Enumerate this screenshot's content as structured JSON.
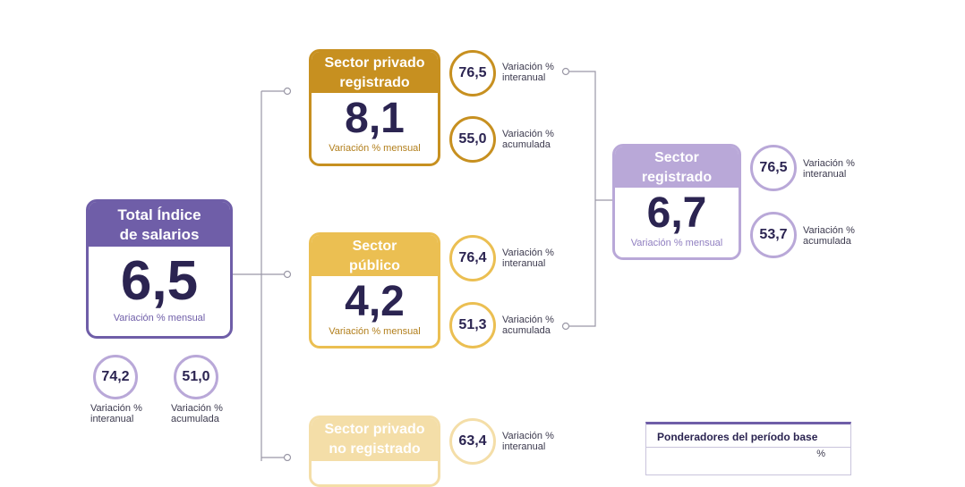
{
  "colors": {
    "purple_dark": "#6f5ea8",
    "purple_light": "#b9a8d8",
    "gold_dark": "#c79020",
    "gold_mid": "#ebbf52",
    "gold_light": "#f4dea8",
    "number_text": "#2b2451"
  },
  "caption_mensual": "Variación % mensual",
  "total": {
    "title_line1": "Total Índice",
    "title_line2": "de salarios",
    "value": "6,5",
    "interanual": {
      "value": "74,2",
      "label_line1": "Variación %",
      "label_line2": "interanual"
    },
    "acumulada": {
      "value": "51,0",
      "label_line1": "Variación %",
      "label_line2": "acumulada"
    }
  },
  "privado_registrado": {
    "title_line1": "Sector privado",
    "title_line2": "registrado",
    "value": "8,1",
    "interanual": {
      "value": "76,5",
      "label_line1": "Variación %",
      "label_line2": "interanual"
    },
    "acumulada": {
      "value": "55,0",
      "label_line1": "Variación %",
      "label_line2": "acumulada"
    }
  },
  "publico": {
    "title_line1": "Sector",
    "title_line2": "público",
    "value": "4,2",
    "interanual": {
      "value": "76,4",
      "label_line1": "Variación %",
      "label_line2": "interanual"
    },
    "acumulada": {
      "value": "51,3",
      "label_line1": "Variación %",
      "label_line2": "acumulada"
    }
  },
  "privado_no_registrado": {
    "title_line1": "Sector privado",
    "title_line2": "no registrado",
    "interanual": {
      "value": "63,4",
      "label_line1": "Variación %",
      "label_line2": "interanual"
    }
  },
  "registrado": {
    "title_line1": "Sector",
    "title_line2": "registrado",
    "value": "6,7",
    "interanual": {
      "value": "76,5",
      "label_line1": "Variación %",
      "label_line2": "interanual"
    },
    "acumulada": {
      "value": "53,7",
      "label_line1": "Variación %",
      "label_line2": "acumulada"
    }
  },
  "ponderadores": {
    "title": "Ponderadores del período base",
    "column_header": "%"
  }
}
